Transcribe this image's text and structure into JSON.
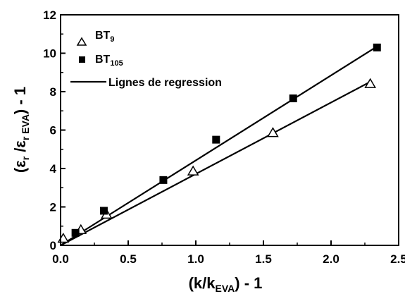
{
  "chart_data": {
    "type": "scatter",
    "xlabel": {
      "main": "(k/k",
      "sub": "EVA",
      "tail": ") - 1"
    },
    "ylabel": {
      "open": "(ε",
      "sub1": "r",
      "mid": " /ε",
      "sub2": "r EVA",
      "tail": ") - 1"
    },
    "xlim": [
      0,
      2.5
    ],
    "ylim": [
      0,
      12
    ],
    "xticks": [
      "0.0",
      "0.5",
      "1.0",
      "1.5",
      "2.0",
      "2.5"
    ],
    "yticks": [
      "0",
      "2",
      "4",
      "6",
      "8",
      "10",
      "12"
    ],
    "grid": false,
    "legend_position": "top-left",
    "series": [
      {
        "name": "BT",
        "name_sub": "9",
        "marker": "open-triangle",
        "color": "#000000",
        "x": [
          0.02,
          0.15,
          0.34,
          0.98,
          1.57,
          2.29
        ],
        "y": [
          0.35,
          0.8,
          1.6,
          3.85,
          5.85,
          8.4
        ]
      },
      {
        "name": "BT",
        "name_sub": "105",
        "marker": "filled-square",
        "color": "#000000",
        "x": [
          0.11,
          0.32,
          0.76,
          1.15,
          1.72,
          2.34
        ],
        "y": [
          0.65,
          1.8,
          3.4,
          5.5,
          7.65,
          10.3
        ]
      },
      {
        "name": "Lignes de regression",
        "marker": "line",
        "color": "#000000",
        "lines": [
          {
            "x": [
              0.0,
              2.3
            ],
            "y": [
              0.0,
              8.55
            ]
          },
          {
            "x": [
              0.0,
              2.34
            ],
            "y": [
              0.0,
              10.35
            ]
          }
        ]
      }
    ]
  }
}
